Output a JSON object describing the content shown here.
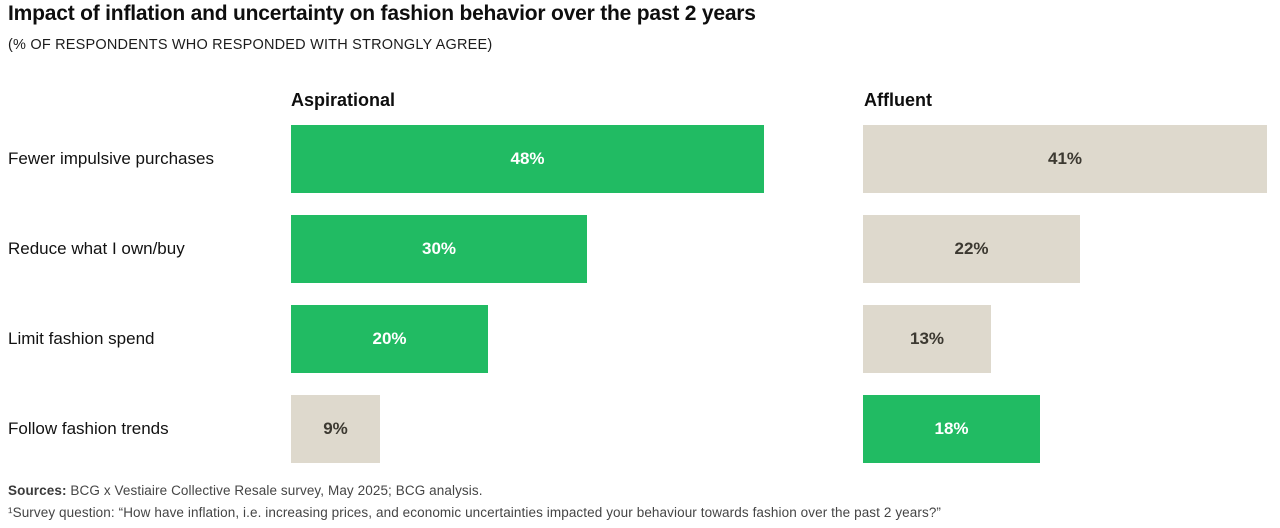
{
  "title": "Impact of inflation and uncertainty on fashion behavior over the past 2 years",
  "subtitle": "(% OF RESPONDENTS WHO RESPONDED WITH STRONGLY AGREE)",
  "colors": {
    "highlight_green": "#21bb63",
    "muted_beige": "#ded9cd",
    "title_text": "#0e0e0e",
    "footer_text": "#454545"
  },
  "columns": [
    {
      "label": "Aspirational"
    },
    {
      "label": "Affluent"
    }
  ],
  "chart_data": {
    "type": "bar",
    "orientation": "horizontal",
    "title": "Impact of inflation and uncertainty on fashion behavior over the past 2 years",
    "subtitle": "(% OF RESPONDENTS WHO RESPONDED WITH STRONGLY AGREE)",
    "value_suffix": "%",
    "xlim": [
      0,
      48
    ],
    "grid": false,
    "legend_position": "column-headers",
    "categories": [
      "Fewer impulsive purchases",
      "Reduce what I own/buy",
      "Limit fashion spend",
      "Follow fashion trends"
    ],
    "series": [
      {
        "name": "Aspirational",
        "values": [
          48,
          30,
          20,
          9
        ],
        "highlighted": [
          true,
          true,
          true,
          false
        ]
      },
      {
        "name": "Affluent",
        "values": [
          41,
          22,
          13,
          18
        ],
        "highlighted": [
          false,
          false,
          false,
          true
        ]
      }
    ]
  },
  "footer": {
    "sources_label": "Sources:",
    "sources_text": " BCG x Vestiaire Collective Resale survey, May 2025; BCG analysis.",
    "survey_note": "¹Survey question: “How have inflation, i.e. increasing prices, and economic uncertainties impacted your behaviour towards fashion over the past 2 years?”"
  }
}
